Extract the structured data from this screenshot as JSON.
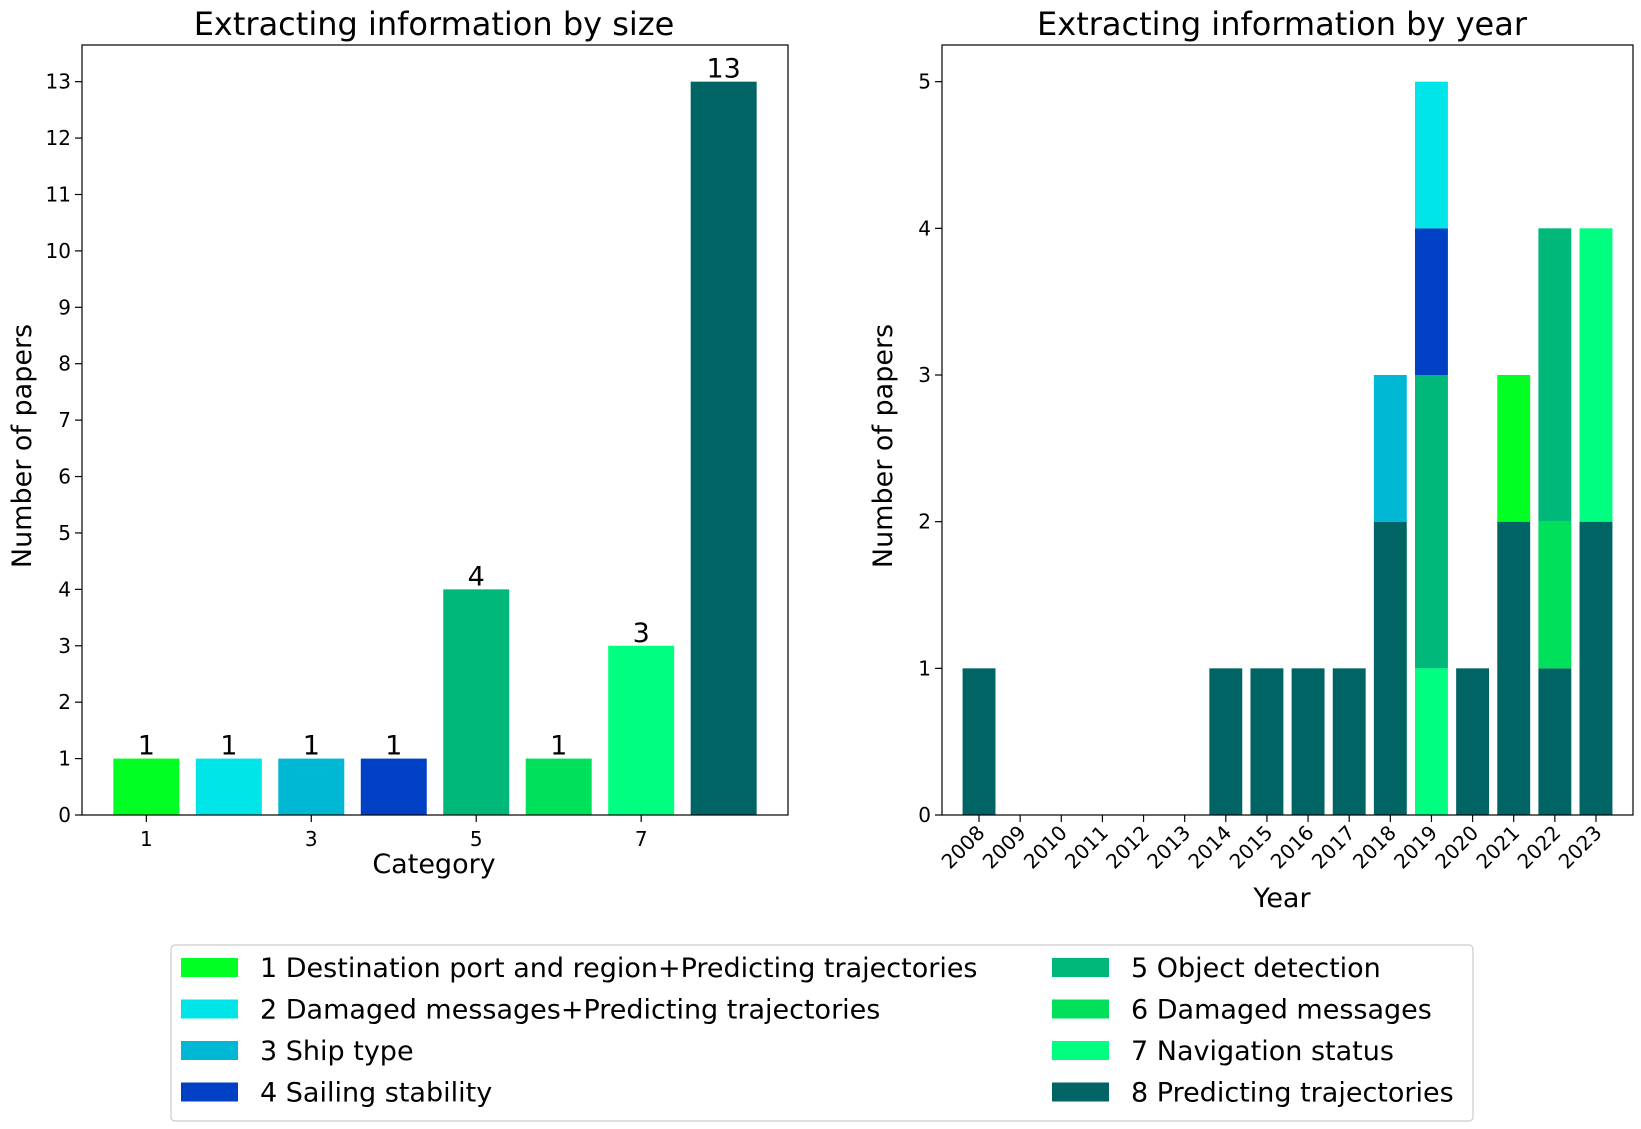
{
  "chart_data": [
    {
      "type": "bar",
      "title": "Extracting information by size",
      "xlabel": "Category",
      "ylabel": "Number of papers",
      "categories": [
        1,
        2,
        3,
        4,
        5,
        6,
        7,
        8
      ],
      "values": [
        1,
        1,
        1,
        1,
        4,
        1,
        3,
        13
      ],
      "colors": [
        "#00ff22",
        "#00e5e8",
        "#00b8d4",
        "#0040c4",
        "#00b87a",
        "#00e05a",
        "#00ff80",
        "#006464"
      ],
      "xticks": [
        1,
        3,
        5,
        7
      ],
      "yticks": [
        0,
        1,
        2,
        3,
        4,
        5,
        6,
        7,
        8,
        9,
        10,
        11,
        12,
        13
      ],
      "ylim": [
        0,
        13.65
      ],
      "data_labels": true
    },
    {
      "type": "stacked_bar",
      "title": "Extracting information by year",
      "xlabel": "Year",
      "ylabel": "Number of papers",
      "categories": [
        "2008",
        "2009",
        "2010",
        "2011",
        "2012",
        "2013",
        "2014",
        "2015",
        "2016",
        "2017",
        "2018",
        "2019",
        "2020",
        "2021",
        "2022",
        "2023"
      ],
      "yticks": [
        0,
        1,
        2,
        3,
        4,
        5
      ],
      "ylim": [
        0,
        5.25
      ],
      "series": [
        {
          "name": "8 Predicting trajectories",
          "color": "#006464",
          "values": [
            1,
            0,
            0,
            0,
            0,
            0,
            1,
            1,
            1,
            1,
            2,
            0,
            1,
            2,
            1,
            2
          ]
        },
        {
          "name": "7 Navigation status",
          "color": "#00ff80",
          "values": [
            0,
            0,
            0,
            0,
            0,
            0,
            0,
            0,
            0,
            0,
            0,
            1,
            0,
            0,
            0,
            2
          ]
        },
        {
          "name": "6 Damaged messages",
          "color": "#00e05a",
          "values": [
            0,
            0,
            0,
            0,
            0,
            0,
            0,
            0,
            0,
            0,
            0,
            0,
            0,
            0,
            1,
            0
          ]
        },
        {
          "name": "5 Object detection",
          "color": "#00b87a",
          "values": [
            0,
            0,
            0,
            0,
            0,
            0,
            0,
            0,
            0,
            0,
            0,
            2,
            0,
            0,
            2,
            0
          ]
        },
        {
          "name": "4 Sailing stability",
          "color": "#0040c4",
          "values": [
            0,
            0,
            0,
            0,
            0,
            0,
            0,
            0,
            0,
            0,
            0,
            1,
            0,
            0,
            0,
            0
          ]
        },
        {
          "name": "3 Ship type",
          "color": "#00b8d4",
          "values": [
            0,
            0,
            0,
            0,
            0,
            0,
            0,
            0,
            0,
            0,
            1,
            0,
            0,
            0,
            0,
            0
          ]
        },
        {
          "name": "2 Damaged messages+Predicting trajectories",
          "color": "#00e5e8",
          "values": [
            0,
            0,
            0,
            0,
            0,
            0,
            0,
            0,
            0,
            0,
            0,
            1,
            0,
            0,
            0,
            0
          ]
        },
        {
          "name": "1 Destination port and region+Predicting trajectories",
          "color": "#00ff22",
          "values": [
            0,
            0,
            0,
            0,
            0,
            0,
            0,
            0,
            0,
            0,
            0,
            0,
            0,
            1,
            0,
            0
          ]
        }
      ]
    }
  ],
  "legend": {
    "placement": "bottom-center",
    "columns": [
      [
        {
          "label": "1 Destination port and region+Predicting trajectories",
          "color": "#00ff22"
        },
        {
          "label": "2 Damaged messages+Predicting trajectories",
          "color": "#00e5e8"
        },
        {
          "label": "3 Ship type",
          "color": "#00b8d4"
        },
        {
          "label": "4 Sailing stability",
          "color": "#0040c4"
        }
      ],
      [
        {
          "label": "5 Object detection",
          "color": "#00b87a"
        },
        {
          "label": "6 Damaged messages",
          "color": "#00e05a"
        },
        {
          "label": "7 Navigation status",
          "color": "#00ff80"
        },
        {
          "label": "8 Predicting trajectories",
          "color": "#006464"
        }
      ]
    ]
  }
}
